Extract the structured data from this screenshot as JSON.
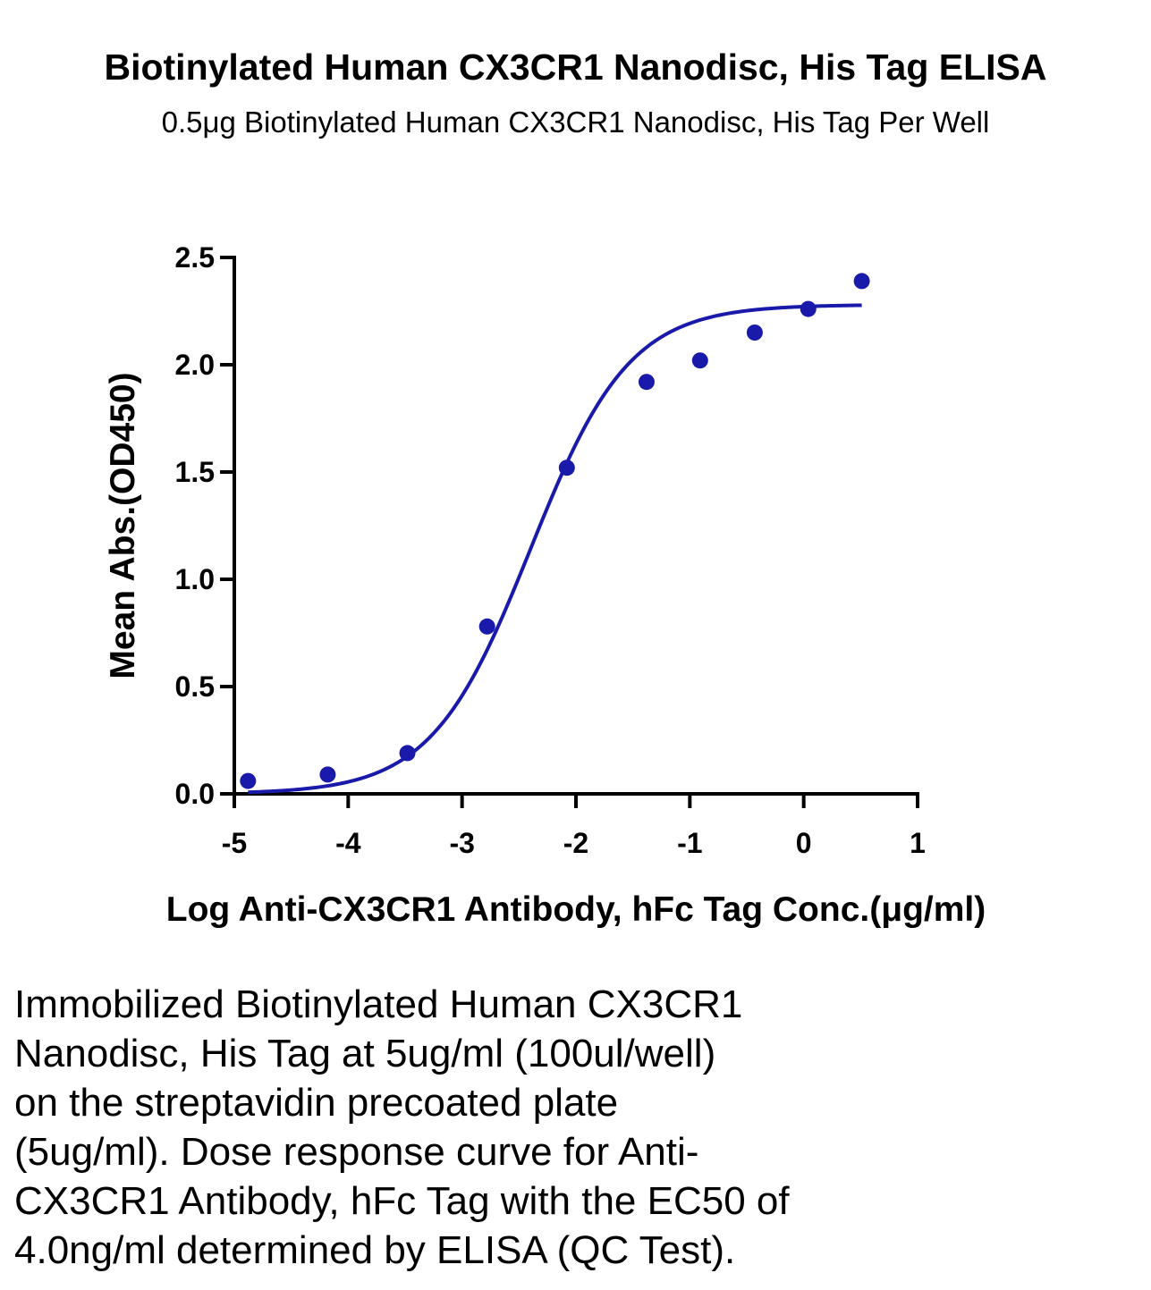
{
  "chart_data": {
    "type": "scatter",
    "title": "Biotinylated Human CX3CR1 Nanodisc, His Tag ELISA",
    "subtitle": "0.5μg Biotinylated Human CX3CR1 Nanodisc, His Tag Per Well",
    "xlabel": "Log Anti-CX3CR1 Antibody, hFc Tag Conc.(μg/ml)",
    "ylabel": "Mean Abs.(OD450)",
    "xlim": [
      -5,
      1
    ],
    "ylim": [
      0,
      2.5
    ],
    "xticks": [
      "-5",
      "-4",
      "-3",
      "-2",
      "-1",
      "0",
      "1"
    ],
    "yticks": [
      "0.0",
      "0.5",
      "1.0",
      "1.5",
      "2.0",
      "2.5"
    ],
    "grid": false,
    "legend": "none",
    "color": "#1a1aaa",
    "series": [
      {
        "x": [
          -4.88,
          -4.18,
          -3.48,
          -2.78,
          -2.08,
          -1.38,
          -0.91,
          -0.43,
          0.04,
          0.51
        ],
        "y": [
          0.06,
          0.09,
          0.19,
          0.78,
          1.52,
          1.92,
          2.02,
          2.15,
          2.26,
          2.39
        ]
      }
    ],
    "fit_curve": {
      "model": "4PL",
      "bottom": 0.0,
      "top": 2.28,
      "log_ec50": -2.4,
      "hill": 1.0,
      "x_range": [
        -4.88,
        0.51
      ]
    }
  },
  "caption": {
    "lines": [
      "Immobilized Biotinylated Human CX3CR1",
      "Nanodisc, His Tag at 5ug/ml (100ul/well)",
      "on the streptavidin precoated plate",
      "(5ug/ml). Dose response curve for Anti-",
      "CX3CR1 Antibody, hFc Tag with the EC50 of",
      "4.0ng/ml determined by ELISA (QC Test)."
    ]
  }
}
